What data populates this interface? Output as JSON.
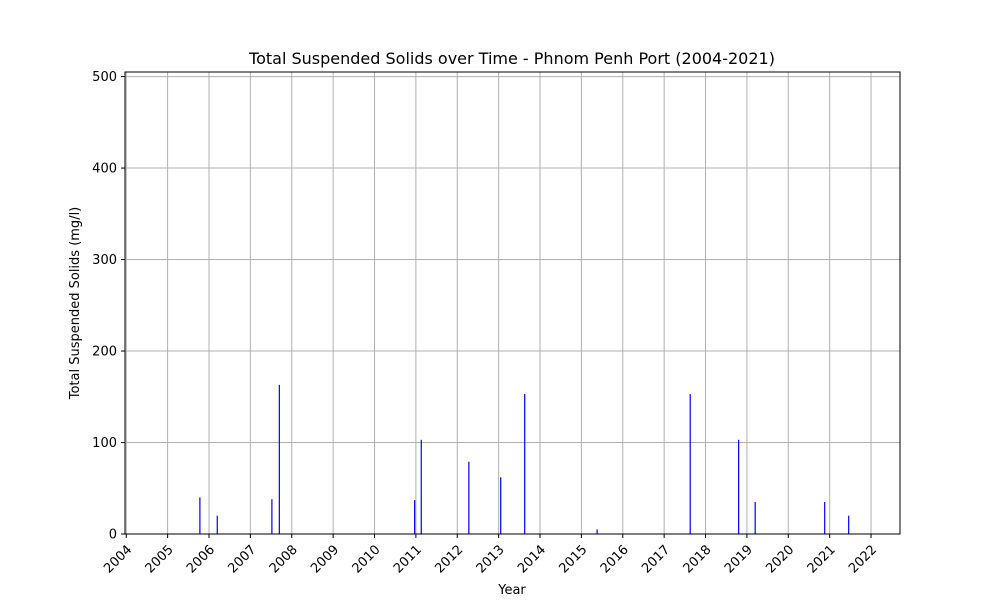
{
  "chart_data": {
    "type": "bar",
    "title": "Total Suspended Solids over Time - Phnom Penh Port (2004-2021)",
    "xlabel": "Year",
    "ylabel": "Total Suspended Solids (mg/l)",
    "xlim": [
      2003.97,
      2022.7
    ],
    "ylim": [
      0,
      505
    ],
    "x_ticks": [
      "2004",
      "2005",
      "2006",
      "2007",
      "2008",
      "2009",
      "2010",
      "2011",
      "2012",
      "2013",
      "2014",
      "2015",
      "2016",
      "2017",
      "2018",
      "2019",
      "2020",
      "2021",
      "2022"
    ],
    "y_ticks": [
      0,
      100,
      200,
      300,
      400,
      500
    ],
    "grid": true,
    "bar_color": "#0000ff",
    "x": [
      2005.78,
      2006.2,
      2007.52,
      2007.7,
      2010.97,
      2011.13,
      2012.28,
      2013.05,
      2013.63,
      2015.38,
      2017.63,
      2018.8,
      2019.2,
      2020.88,
      2021.46
    ],
    "values": [
      40,
      20,
      38,
      163,
      37,
      103,
      79,
      62,
      153,
      5,
      153,
      103,
      35,
      35,
      20
    ]
  }
}
